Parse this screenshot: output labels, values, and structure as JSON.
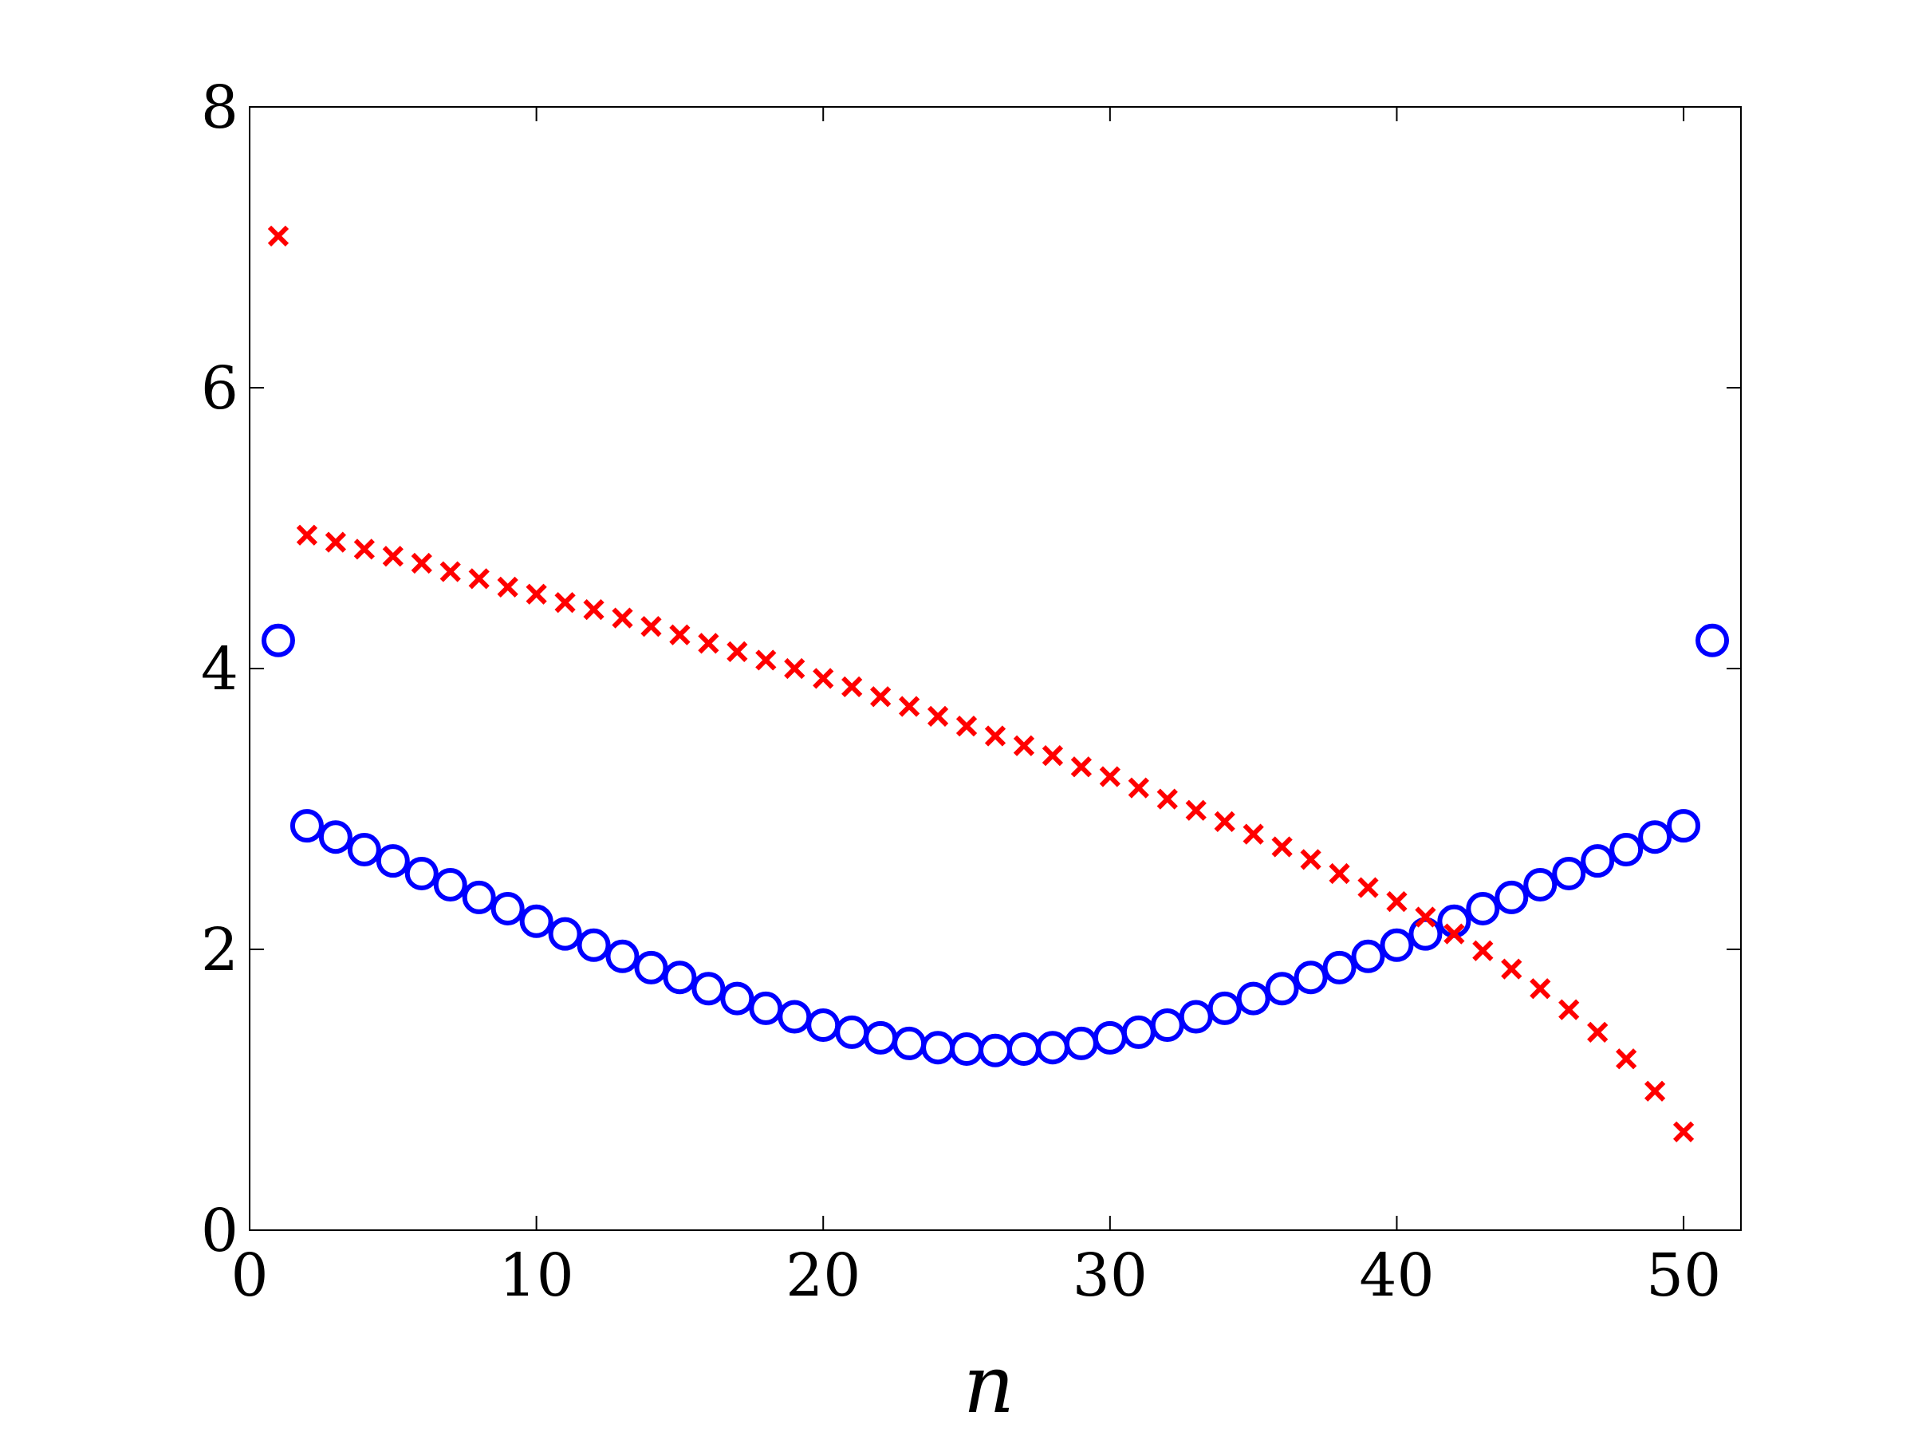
{
  "chart_data": {
    "type": "scatter",
    "title": "",
    "xlabel": "n",
    "ylabel": "",
    "xlim": [
      0,
      52
    ],
    "ylim": [
      0,
      8
    ],
    "xticks": [
      "0",
      "10",
      "20",
      "30",
      "40",
      "50"
    ],
    "yticks": [
      "0",
      "2",
      "4",
      "6",
      "8"
    ],
    "grid": false,
    "legend": "none",
    "series": [
      {
        "marker": "circle",
        "color": "#0000ff",
        "x": [
          1,
          2,
          3,
          4,
          5,
          6,
          7,
          8,
          9,
          10,
          11,
          12,
          13,
          14,
          15,
          16,
          17,
          18,
          19,
          20,
          21,
          22,
          23,
          24,
          25,
          26,
          27,
          28,
          29,
          30,
          31,
          32,
          33,
          34,
          35,
          36,
          37,
          38,
          39,
          40,
          41,
          42,
          43,
          44,
          45,
          46,
          47,
          48,
          49,
          50,
          51
        ],
        "y": [
          4.2,
          2.88,
          2.8,
          2.71,
          2.63,
          2.54,
          2.46,
          2.37,
          2.29,
          2.2,
          2.11,
          2.03,
          1.95,
          1.87,
          1.8,
          1.72,
          1.65,
          1.58,
          1.52,
          1.46,
          1.41,
          1.37,
          1.33,
          1.3,
          1.29,
          1.28,
          1.29,
          1.3,
          1.33,
          1.37,
          1.41,
          1.46,
          1.52,
          1.58,
          1.65,
          1.72,
          1.8,
          1.87,
          1.95,
          2.03,
          2.11,
          2.2,
          2.29,
          2.37,
          2.46,
          2.54,
          2.63,
          2.71,
          2.8,
          2.88,
          4.2
        ]
      },
      {
        "marker": "x",
        "color": "#ff0000",
        "x": [
          1,
          2,
          3,
          4,
          5,
          6,
          7,
          8,
          9,
          10,
          11,
          12,
          13,
          14,
          15,
          16,
          17,
          18,
          19,
          20,
          21,
          22,
          23,
          24,
          25,
          26,
          27,
          28,
          29,
          30,
          31,
          32,
          33,
          34,
          35,
          36,
          37,
          38,
          39,
          40,
          41,
          42,
          43,
          44,
          45,
          46,
          47,
          48,
          49,
          50
        ],
        "y": [
          7.08,
          4.95,
          4.9,
          4.85,
          4.8,
          4.75,
          4.69,
          4.64,
          4.58,
          4.53,
          4.47,
          4.42,
          4.36,
          4.3,
          4.24,
          4.18,
          4.12,
          4.06,
          4.0,
          3.93,
          3.87,
          3.8,
          3.73,
          3.66,
          3.59,
          3.52,
          3.45,
          3.38,
          3.3,
          3.23,
          3.15,
          3.07,
          2.99,
          2.91,
          2.82,
          2.73,
          2.64,
          2.54,
          2.44,
          2.34,
          2.23,
          2.11,
          1.99,
          1.86,
          1.72,
          1.57,
          1.41,
          1.22,
          0.99,
          0.7
        ]
      }
    ]
  }
}
